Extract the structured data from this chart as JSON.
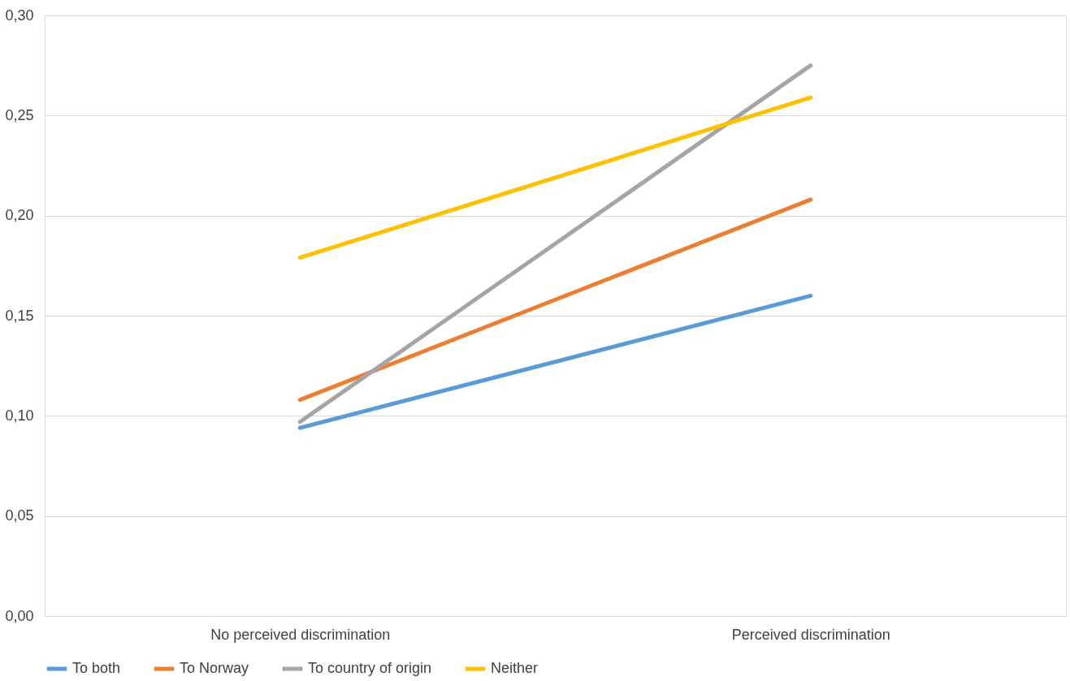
{
  "chart_data": {
    "type": "line",
    "categories": [
      "No perceived discrimination",
      "Perceived discrimination"
    ],
    "series": [
      {
        "name": "To both",
        "color": "#5b9bd5",
        "values": [
          0.094,
          0.16
        ]
      },
      {
        "name": "To Norway",
        "color": "#ed7d31",
        "values": [
          0.108,
          0.208
        ]
      },
      {
        "name": "To country of origin",
        "color": "#a5a5a5",
        "values": [
          0.097,
          0.275
        ]
      },
      {
        "name": "Neither",
        "color": "#ffc000",
        "values": [
          0.179,
          0.259
        ]
      }
    ],
    "ylim": [
      0,
      0.3
    ],
    "yticks": [
      {
        "value": 0,
        "label": "0,00"
      },
      {
        "value": 0.05,
        "label": "0,05"
      },
      {
        "value": 0.1,
        "label": "0,10"
      },
      {
        "value": 0.15,
        "label": "0,15"
      },
      {
        "value": 0.2,
        "label": "0,20"
      },
      {
        "value": 0.25,
        "label": "0,25"
      },
      {
        "value": 0.3,
        "label": "0,30"
      }
    ],
    "grid": "y",
    "legend": "bottom",
    "marker": "none",
    "line_style": "solid"
  }
}
